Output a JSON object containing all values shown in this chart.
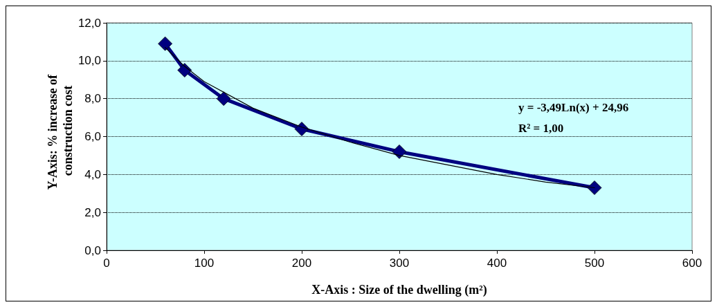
{
  "chart_data": {
    "type": "line",
    "xlabel": "X-Axis : Size of the dwelling (m²)",
    "ylabel": "Y-Axis: % increase of construction cost",
    "series": [
      {
        "color": "#000080",
        "x": [
          60,
          80,
          120,
          200,
          300,
          500
        ],
        "values": [
          10.9,
          9.5,
          8.0,
          6.4,
          5.2,
          3.3
        ],
        "marker": "diamond",
        "line_style": "solid"
      },
      {
        "type": "line",
        "color": "#000000",
        "x": [
          60,
          80,
          100,
          150,
          200,
          250,
          300,
          350,
          400,
          450,
          500
        ],
        "values": [
          10.7,
          9.7,
          8.9,
          7.5,
          6.5,
          5.7,
          5.0,
          4.5,
          4.0,
          3.6,
          3.3
        ],
        "marker": "none",
        "line_style": "solid"
      }
    ],
    "xlim": [
      0,
      600
    ],
    "xticks": [
      0,
      100,
      200,
      300,
      400,
      500,
      600
    ],
    "ylim": [
      0,
      12
    ],
    "yticks": [
      {
        "value": 0,
        "label": "0,0"
      },
      {
        "value": 2,
        "label": "2,0"
      },
      {
        "value": 4,
        "label": "4,0"
      },
      {
        "value": 6,
        "label": "6,0"
      },
      {
        "value": 8,
        "label": "8,0"
      },
      {
        "value": 10,
        "label": "10,0"
      },
      {
        "value": 12,
        "label": "12,0"
      }
    ],
    "grid": "y",
    "annotations": [
      "y = -3,49Ln(x) + 24,96",
      "R² = 1,00"
    ]
  }
}
